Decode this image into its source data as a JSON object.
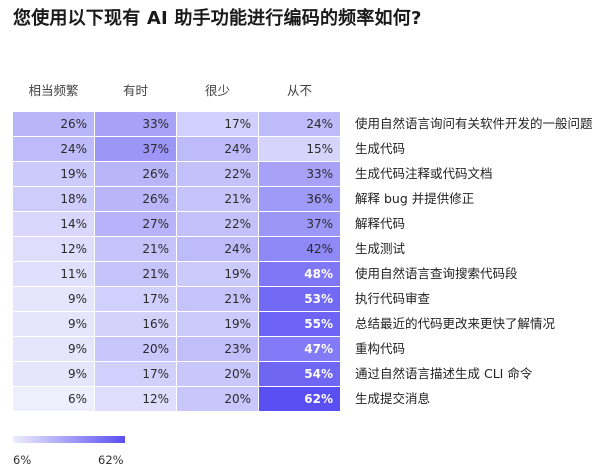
{
  "title": "您使用以下现有 AI 助手功能进行编码的频率如何?",
  "chart_data": {
    "type": "heatmap",
    "title": "您使用以下现有 AI 助手功能进行编码的频率如何?",
    "columns": [
      "相当频繁",
      "有时",
      "很少",
      "从不"
    ],
    "rows": [
      "使用自然语言询问有关软件开发的一般问题",
      "生成代码",
      "生成代码注释或代码文档",
      "解释 bug 并提供修正",
      "解释代码",
      "生成测试",
      "使用自然语言查询搜索代码段",
      "执行代码审查",
      "总结最近的代码更改来更快了解情况",
      "重构代码",
      "通过自然语言描述生成 CLI 命令",
      "生成提交消息"
    ],
    "values": [
      [
        26,
        33,
        17,
        24
      ],
      [
        24,
        37,
        24,
        15
      ],
      [
        19,
        26,
        22,
        33
      ],
      [
        18,
        26,
        21,
        36
      ],
      [
        14,
        27,
        22,
        37
      ],
      [
        12,
        21,
        24,
        42
      ],
      [
        11,
        21,
        19,
        48
      ],
      [
        9,
        17,
        21,
        53
      ],
      [
        9,
        16,
        19,
        55
      ],
      [
        9,
        20,
        23,
        47
      ],
      [
        9,
        17,
        20,
        54
      ],
      [
        6,
        12,
        20,
        62
      ]
    ],
    "value_suffix": "%",
    "color_scale": {
      "min": 6,
      "max": 62,
      "min_color": "#eeeefd",
      "max_color": "#5a4ff3"
    },
    "legend": {
      "min_label": "6%",
      "max_label": "62%"
    }
  }
}
